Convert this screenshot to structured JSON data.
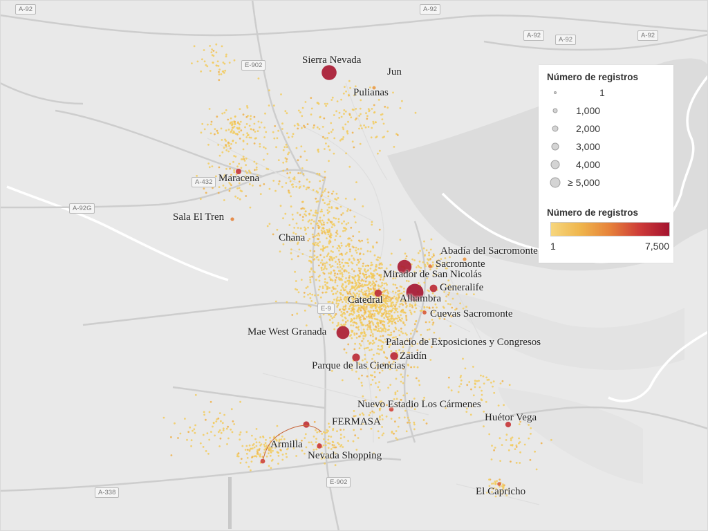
{
  "map": {
    "road_shields": [
      "A-92",
      "A-92",
      "A-92",
      "A-92",
      "A-92",
      "E-902",
      "A-432",
      "A-92G",
      "E-9",
      "A-338",
      "E-902"
    ],
    "places": [
      {
        "name": "Sierra Nevada",
        "value": 6200
      },
      {
        "name": "Jun",
        "value": 30
      },
      {
        "name": "Pulianas",
        "value": 60
      },
      {
        "name": "Maracena",
        "value": 1100
      },
      {
        "name": "Sala El Tren",
        "value": 80
      },
      {
        "name": "Chana",
        "value": 150
      },
      {
        "name": "Abadía del Sacromonte",
        "value": 40
      },
      {
        "name": "Sacromonte",
        "value": 120
      },
      {
        "name": "Mirador de San Nicolás",
        "value": 5800
      },
      {
        "name": "Generalife",
        "value": 2200
      },
      {
        "name": "Alhambra",
        "value": 7500
      },
      {
        "name": "Catedral",
        "value": 2100
      },
      {
        "name": "Cuevas Sacromonte",
        "value": 300
      },
      {
        "name": "Mae West Granada",
        "value": 5200
      },
      {
        "name": "Palacio de Exposiciones y Congresos",
        "value": 900
      },
      {
        "name": "Zaidín",
        "value": 2400
      },
      {
        "name": "Parque de las Ciencias",
        "value": 2300
      },
      {
        "name": "Nuevo Estadio Los Cármenes",
        "value": 600
      },
      {
        "name": "FERMASA",
        "value": 1600
      },
      {
        "name": "Huétor Vega",
        "value": 1200
      },
      {
        "name": "Armilla",
        "value": 700
      },
      {
        "name": "Nevada Shopping",
        "value": 900
      },
      {
        "name": "El Capricho",
        "value": 250
      }
    ]
  },
  "legend": {
    "size_title": "Número de registros",
    "size_items": [
      {
        "label": "1",
        "value": 1
      },
      {
        "label": "1,000",
        "value": 1000
      },
      {
        "label": "2,000",
        "value": 2000
      },
      {
        "label": "3,000",
        "value": 3000
      },
      {
        "label": "4,000",
        "value": 4000
      },
      {
        "label": "≥ 5,000",
        "value": 5000
      }
    ],
    "color_title": "Número de registros",
    "color_min": "1",
    "color_max": "7,500",
    "color_stops": [
      "#f6d67d",
      "#efb54c",
      "#e6813a",
      "#cd3b38",
      "#a4132f"
    ]
  }
}
